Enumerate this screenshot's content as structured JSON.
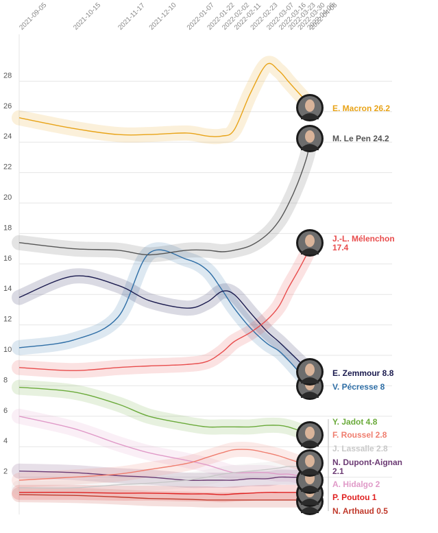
{
  "chart_data": {
    "type": "line",
    "title": "",
    "xlabel": "",
    "ylabel": "",
    "ylim": [
      0,
      30
    ],
    "yticks": [
      2,
      4,
      6,
      8,
      10,
      12,
      14,
      16,
      18,
      20,
      22,
      24,
      26,
      28
    ],
    "dates": [
      "2021-09-05",
      "2021-10-15",
      "2021-11-17",
      "2021-12-10",
      "2022-01-07",
      "2022-01-22",
      "2022-02-02",
      "2022-02-11",
      "2022-02-23",
      "2022-03-07",
      "2022-03-16",
      "2022-03-23",
      "2022-03-30",
      "2022-04-06",
      "2022-04-08"
    ],
    "x": [
      0,
      40,
      73,
      96,
      124,
      139,
      150,
      159,
      171,
      183,
      192,
      199,
      206,
      213,
      215
    ],
    "series": [
      {
        "name": "E. Macron",
        "label": "E. Macron 26.2",
        "color": "#e8a317",
        "values": [
          25.6,
          24.9,
          24.5,
          24.5,
          24.6,
          24.4,
          24.4,
          24.8,
          27.2,
          29.1,
          28.7,
          28.0,
          27.3,
          26.6,
          26.2
        ]
      },
      {
        "name": "M. Le Pen",
        "label": "M. Le Pen 24.2",
        "color": "#555555",
        "values": [
          17.4,
          17.0,
          16.9,
          16.6,
          16.9,
          16.9,
          16.8,
          16.9,
          17.2,
          17.9,
          18.8,
          19.9,
          21.3,
          23.1,
          24.2
        ]
      },
      {
        "name": "J.-L. Mélenchon",
        "label_line1": "J.-L. Mélenchon",
        "label_line2": "17.4",
        "color": "#e84c4c",
        "values": [
          9.2,
          9.0,
          9.2,
          9.3,
          9.4,
          9.6,
          10.2,
          10.9,
          11.5,
          12.3,
          13.2,
          14.4,
          15.5,
          16.7,
          17.4
        ]
      },
      {
        "name": "E. Zemmour",
        "label": "E. Zemmour 8.8",
        "color": "#1a1a4e",
        "values": [
          13.8,
          15.2,
          14.6,
          13.6,
          13.1,
          13.5,
          14.2,
          14.0,
          12.8,
          11.6,
          10.9,
          10.3,
          9.7,
          9.1,
          8.8
        ]
      },
      {
        "name": "V. Pécresse",
        "label": "V. Pécresse 8",
        "color": "#2e6ea6",
        "values": [
          10.5,
          11.0,
          12.5,
          16.7,
          16.3,
          15.6,
          14.3,
          13.1,
          11.8,
          10.8,
          10.3,
          9.7,
          9.0,
          8.3,
          8.0
        ]
      },
      {
        "name": "Y. Jadot",
        "label": "Y. Jadot 4.8",
        "color": "#6aaa3a",
        "values": [
          7.9,
          7.6,
          6.8,
          6.0,
          5.5,
          5.3,
          5.3,
          5.3,
          5.3,
          5.4,
          5.4,
          5.3,
          5.1,
          4.9,
          4.8
        ]
      },
      {
        "name": "F. Roussel",
        "label": "F. Roussel 2.8",
        "color": "#ef7d6e",
        "values": [
          1.8,
          2.0,
          2.2,
          2.5,
          2.9,
          3.3,
          3.6,
          3.8,
          3.8,
          3.6,
          3.4,
          3.2,
          3.0,
          2.9,
          2.8
        ]
      },
      {
        "name": "J. Lassalle",
        "label": "J. Lassalle 2.8",
        "color": "#c8c8c8",
        "values": [
          1.3,
          1.3,
          1.5,
          1.6,
          1.8,
          2.0,
          2.2,
          2.3,
          2.4,
          2.5,
          2.6,
          2.7,
          2.7,
          2.8,
          2.8
        ]
      },
      {
        "name": "N. Dupont-Aignan",
        "label_line1": "N. Dupont-Aignan",
        "label_line2": "2.1",
        "color": "#6b3a73",
        "values": [
          2.4,
          2.3,
          2.1,
          2.0,
          1.8,
          1.8,
          1.8,
          1.8,
          1.9,
          1.9,
          2.0,
          2.0,
          2.0,
          2.1,
          2.1
        ]
      },
      {
        "name": "A. Hidalgo",
        "label": "A. Hidalgo 2",
        "color": "#e09ac8",
        "values": [
          6.0,
          5.2,
          4.2,
          3.6,
          3.1,
          2.8,
          2.5,
          2.3,
          2.3,
          2.3,
          2.2,
          2.2,
          2.1,
          2.0,
          2.0
        ]
      },
      {
        "name": "P. Poutou",
        "label": "P. Poutou 1",
        "color": "#e02020",
        "values": [
          1.0,
          1.0,
          0.95,
          0.95,
          0.9,
          0.9,
          0.85,
          0.9,
          0.95,
          1.0,
          1.0,
          1.0,
          1.0,
          1.0,
          1.0
        ]
      },
      {
        "name": "N. Arthaud",
        "label": "N. Arthaud 0.5",
        "color": "#c0392b",
        "values": [
          0.85,
          0.8,
          0.7,
          0.6,
          0.55,
          0.5,
          0.5,
          0.5,
          0.5,
          0.5,
          0.5,
          0.5,
          0.5,
          0.5,
          0.5
        ]
      }
    ]
  }
}
